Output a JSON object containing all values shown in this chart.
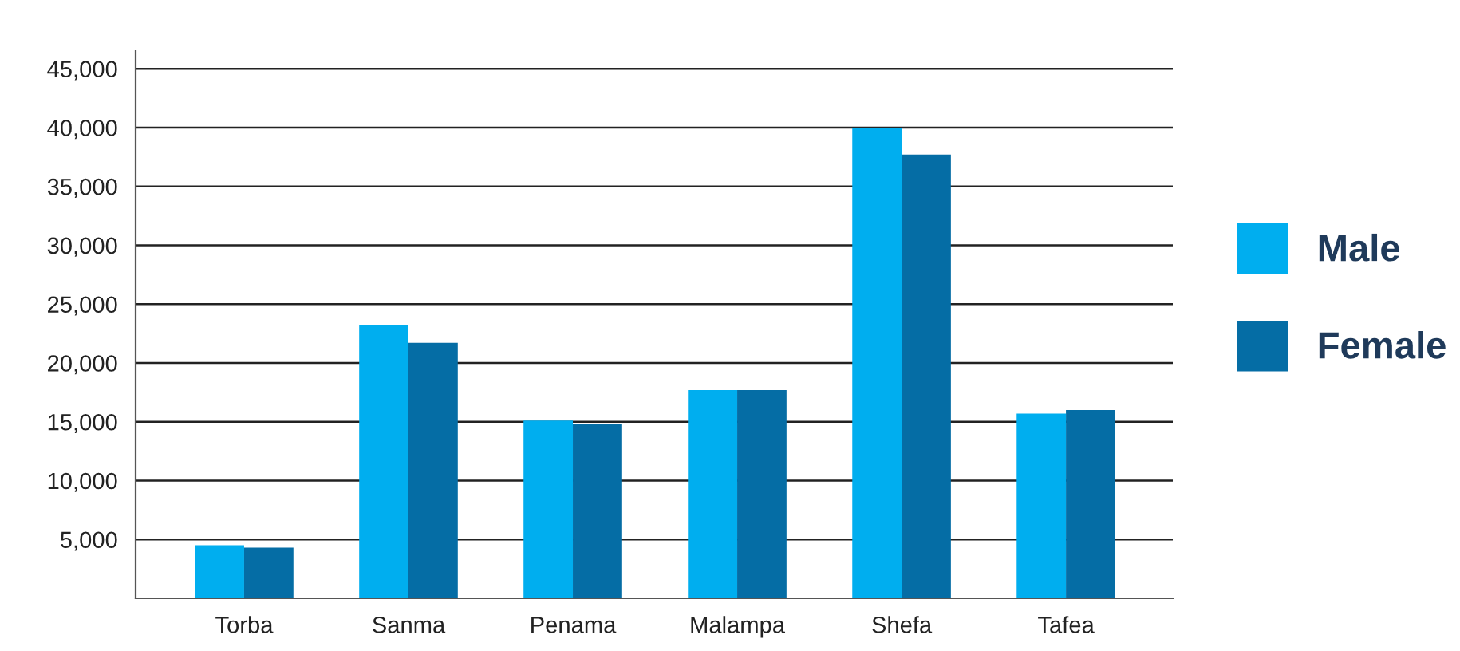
{
  "chart_data": {
    "type": "bar",
    "categories": [
      "Torba",
      "Sanma",
      "Penama",
      "Malampa",
      "Shefa",
      "Tafea"
    ],
    "series": [
      {
        "name": "Male",
        "color": "#00aeef",
        "values": [
          4500,
          23200,
          15100,
          17700,
          40000,
          15700
        ]
      },
      {
        "name": "Female",
        "color": "#056da5",
        "values": [
          4300,
          21700,
          14800,
          17700,
          37700,
          16000
        ]
      }
    ],
    "ylim": [
      0,
      46500
    ],
    "yticks": [
      {
        "value": 5000,
        "label": "5,000"
      },
      {
        "value": 10000,
        "label": "10,000"
      },
      {
        "value": 15000,
        "label": "15,000"
      },
      {
        "value": 20000,
        "label": "20,000"
      },
      {
        "value": 25000,
        "label": "25,000"
      },
      {
        "value": 30000,
        "label": "30,000"
      },
      {
        "value": 35000,
        "label": "35,000"
      },
      {
        "value": 40000,
        "label": "40,000"
      },
      {
        "value": 45000,
        "label": "45,000"
      }
    ],
    "grid": "y",
    "legend": "right"
  }
}
